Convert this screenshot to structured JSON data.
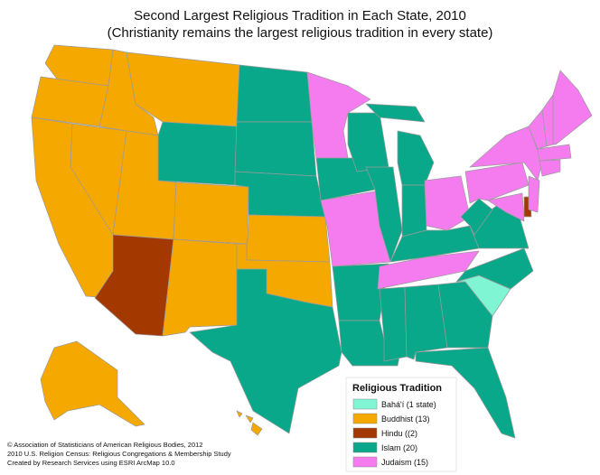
{
  "map": {
    "title": "Second Largest Religious Tradition in Each State, 2010",
    "subtitle": "(Christianity remains the largest religious tradition in every state)",
    "legend": {
      "title": "Religious Tradition",
      "items": [
        {
          "label": "Bahá'í (1 state)",
          "color": "#7ff5d4"
        },
        {
          "label": "Buddhist (13)",
          "color": "#f5a800"
        },
        {
          "label": "Hindu ((2)",
          "color": "#a33800"
        },
        {
          "label": "Islam (20)",
          "color": "#0aa88a"
        },
        {
          "label": "Judaism (15)",
          "color": "#f57cef"
        }
      ]
    },
    "footer": [
      "© Association of Statisticians of American Religious Bodies, 2012",
      "2010 U.S. Religion Census: Religious Congregations & Membership Study",
      "Created by Research Services using ESRI ArcMap 10.0"
    ]
  }
}
